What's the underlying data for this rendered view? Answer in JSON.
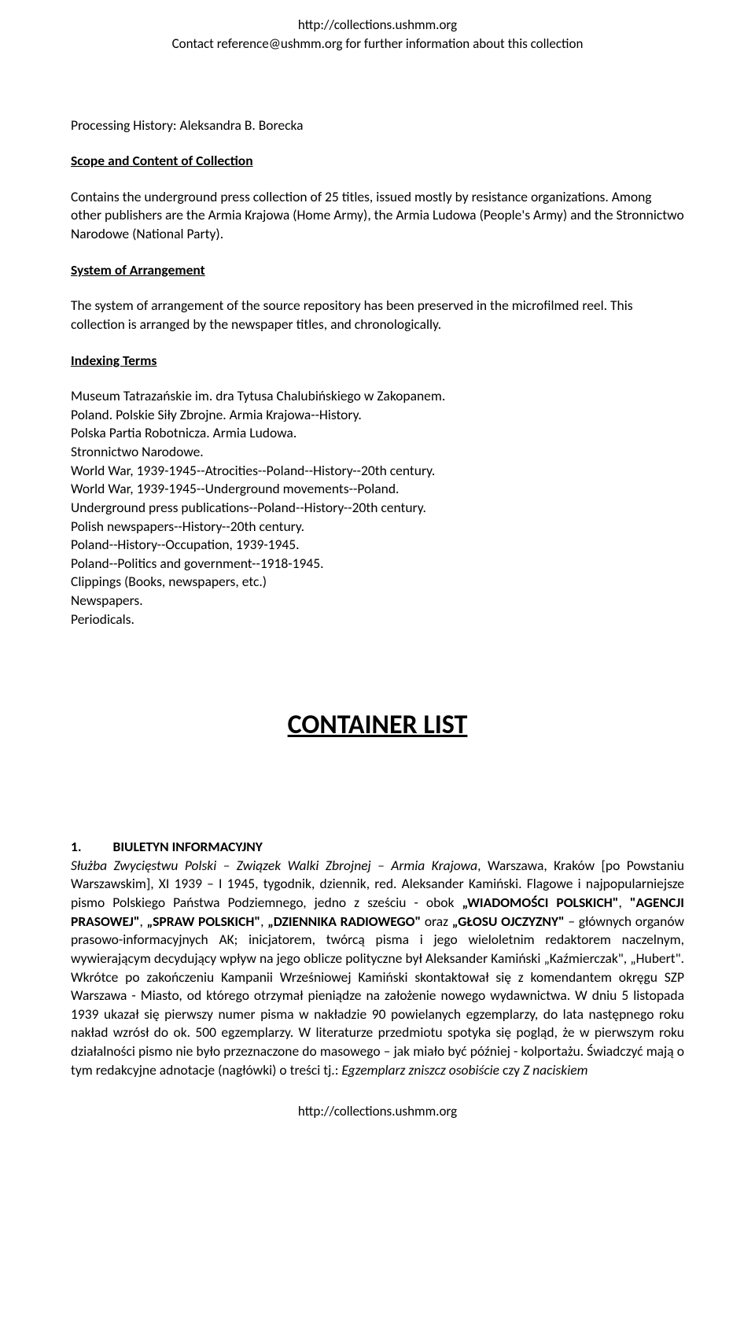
{
  "header": {
    "line1": "http://collections.ushmm.org",
    "line2": "Contact reference@ushmm.org for further information about this collection"
  },
  "processing_history_label": "Processing History:  Aleksandra B. Borecka",
  "scope_heading": "Scope and Content of Collection",
  "scope_para": "Contains the underground press collection of 25 titles, issued  mostly by resistance organizations. Among other publishers are the Armia Krajowa (Home Army), the Armia Ludowa (People's Army) and the Stronnictwo Narodowe (National Party).",
  "arrangement_heading": "System of Arrangement",
  "arrangement_para": "The system of arrangement of the source repository has been preserved in the microfilmed reel. This collection is arranged  by the newspaper titles,  and chronologically.",
  "indexing_heading": "Indexing Terms",
  "indexing_terms": [
    "Museum Tatrazańskie im. dra Tytusa Chalubińskiego w Zakopanem.",
    "Poland. Polskie Siły Zbrojne. Armia Krajowa--History.",
    "Polska Partia Robotnicza. Armia Ludowa.",
    "Stronnictwo Narodowe.",
    "World War, 1939-1945--Atrocities--Poland--History--20th century.",
    "World War, 1939-1945--Underground movements--Poland.",
    "Underground press publications--Poland--History--20th century.",
    "Polish newspapers--History--20th century.",
    "Poland--History--Occupation, 1939-1945.",
    "Poland--Politics and government--1918-1945.",
    "Clippings (Books, newspapers, etc.)",
    "Newspapers.",
    "Periodicals."
  ],
  "container_list_title": "CONTAINER LIST",
  "entry": {
    "number": "1.",
    "title": "BIULETYN INFORMACYJNY",
    "line_italic1": "Służba Zwycięstwu Polski – Związek Walki Zbrojnej – Armia Krajowa",
    "line_plain1": ", Warszawa, Kraków [po Powstaniu Warszawskim], XI 1939 – I 1945, tygodnik, dziennik, red. Aleksander Kamiński. Flagowe i najpopularniejsze pismo Polskiego Państwa Podziemnego, jedno z sześciu - obok ",
    "bold1": "„WIADOMOŚCI POLSKICH\"",
    "plain_sep1": ", ",
    "bold2": "\"AGENCJI PRASOWEJ\"",
    "plain_sep2": ", ",
    "bold3": "„SPRAW POLSKICH\"",
    "plain_sep3": ", ",
    "bold4": "„DZIENNIKA RADIOWEGO\"",
    "plain_sep4": " oraz ",
    "bold5": "„GŁOSU OJCZYZNY\"",
    "line_plain2": " – głównych organów prasowo-informacyjnych AK; inicjatorem, twórcą pisma i jego wieloletnim redaktorem naczelnym, wywierającym decydujący wpływ na jego oblicze polityczne był Aleksander Kamiński „Kaźmierczak\", „Hubert\". Wkrótce po zakończeniu Kampanii Wrześniowej Kamiński skontaktował się z komendantem okręgu SZP Warszawa - Miasto, od którego otrzymał pieniądze na założenie nowego wydawnictwa. W dniu 5 listopada 1939 ukazał się pierwszy numer pisma w nakładzie 90 powielanych egzemplarzy, do lata następnego roku nakład wzrósł do ok. 500 egzemplarzy. W literaturze przedmiotu spotyka się pogląd, że w pierwszym roku działalności pismo nie było przeznaczone do masowego – jak miało być później - kolportażu. Świadczyć mają o tym redakcyjne adnotacje (nagłówki) o treści tj.: ",
    "italic_end1": "Egzemplarz zniszcz osobiście",
    "plain_end1": " czy ",
    "italic_end2": "Z naciskiem"
  },
  "footer": "http://collections.ushmm.org"
}
